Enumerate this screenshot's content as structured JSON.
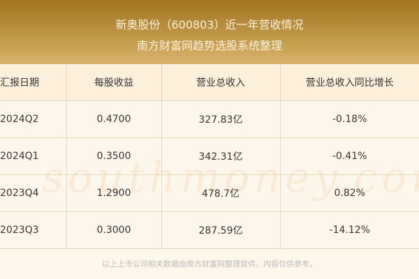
{
  "header": {
    "title": "新奥股份（600803）近一年营收情况",
    "subtitle": "南方财富网趋势选股系统整理"
  },
  "table": {
    "columns": [
      "汇报日期",
      "每股收益",
      "营业总收入",
      "营业总收入同比增长"
    ],
    "rows": [
      [
        "2024Q2",
        "0.4700",
        "327.83亿",
        "-0.18%"
      ],
      [
        "2024Q1",
        "0.3500",
        "342.31亿",
        "-0.41%"
      ],
      [
        "2023Q4",
        "1.2900",
        "478.7亿",
        "0.82%"
      ],
      [
        "2023Q3",
        "0.3000",
        "287.59亿",
        "-14.12%"
      ]
    ]
  },
  "watermark": "南方财富网 southmoney.com",
  "footer": "以上上市公司相关数据由南方财富网整理提供，内容仅供参考。"
}
